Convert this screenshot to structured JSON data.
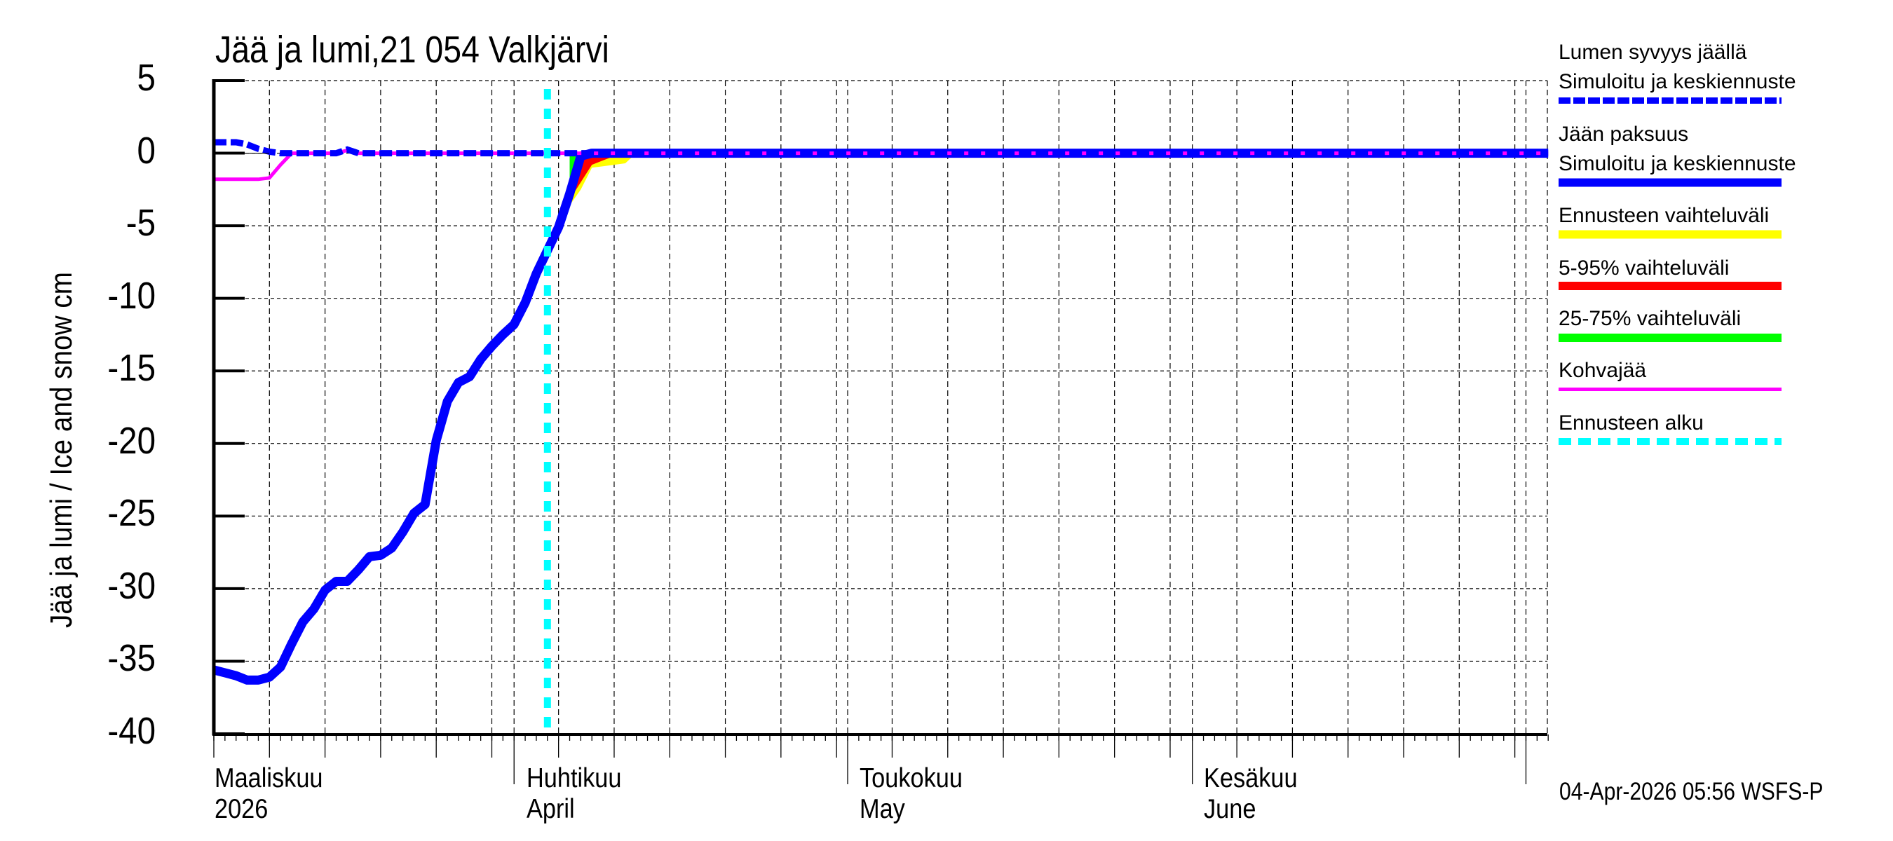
{
  "title": "Jää ja lumi,21 054 Valkjärvi",
  "y_axis_label": "Jää ja lumi / Ice and snow    cm",
  "timestamp": "04-Apr-2026 05:56 WSFS-P",
  "y_ticks": [
    "5",
    "0",
    "-5",
    "-10",
    "-15",
    "-20",
    "-25",
    "-30",
    "-35",
    "-40"
  ],
  "x_labels": [
    {
      "line1": "Maaliskuu",
      "line2": "2026"
    },
    {
      "line1": "Huhtikuu",
      "line2": "April"
    },
    {
      "line1": "Toukokuu",
      "line2": "May"
    },
    {
      "line1": "Kesäkuu",
      "line2": "June"
    }
  ],
  "legend": [
    {
      "line1": "Lumen syvyys jäällä",
      "line2": "Simuloitu ja keskiennuste",
      "color": "#0000ff",
      "style": "dashed-thick"
    },
    {
      "line1": "Jään paksuus",
      "line2": "Simuloitu ja keskiennuste",
      "color": "#0000ff",
      "style": "solid-thick"
    },
    {
      "line1": "Ennusteen vaihteluväli",
      "color": "#ffff00",
      "style": "solid-thick"
    },
    {
      "line1": "5-95% vaihteluväli",
      "color": "#ff0000",
      "style": "solid-thick"
    },
    {
      "line1": "25-75% vaihteluväli",
      "color": "#00ff00",
      "style": "solid-thick"
    },
    {
      "line1": "Kohvajää",
      "color": "#ff00ff",
      "style": "solid-thin"
    },
    {
      "line1": "Ennusteen alku",
      "color": "#00ffff",
      "style": "dashed"
    }
  ],
  "chart_data": {
    "type": "line",
    "title": "Jää ja lumi,21 054 Valkjärvi",
    "xlabel": "",
    "ylabel": "Jää ja lumi / Ice and snow cm",
    "ylim": [
      -40,
      5
    ],
    "xlim": [
      "2026-03-05",
      "2026-07-03"
    ],
    "y_tick_step": 5,
    "grid": true,
    "legend_position": "right",
    "forecast_start": "2026-04-04",
    "x_tick_labels": [
      "Maaliskuu 2026",
      "Huhtikuu April",
      "Toukokuu May",
      "Kesäkuu June"
    ],
    "x": [
      "03-05",
      "03-06",
      "03-07",
      "03-08",
      "03-09",
      "03-10",
      "03-11",
      "03-12",
      "03-13",
      "03-14",
      "03-15",
      "03-16",
      "03-17",
      "03-18",
      "03-19",
      "03-20",
      "03-21",
      "03-22",
      "03-23",
      "03-24",
      "03-25",
      "03-26",
      "03-27",
      "03-28",
      "03-29",
      "03-30",
      "03-31",
      "04-01",
      "04-02",
      "04-03",
      "04-04",
      "04-05",
      "04-06",
      "04-07",
      "04-08",
      "07-03"
    ],
    "series": [
      {
        "name": "Jään paksuus (Simuloitu ja keskiennuste)",
        "color": "#0000ff",
        "values": [
          -35.6,
          -35.8,
          -36.0,
          -36.3,
          -36.3,
          -36.1,
          -35.4,
          -33.8,
          -32.3,
          -31.4,
          -30.1,
          -29.5,
          -29.5,
          -28.7,
          -27.8,
          -27.7,
          -27.2,
          -26.1,
          -24.8,
          -24.2,
          -19.8,
          -17.1,
          -15.8,
          -15.4,
          -14.2,
          -13.3,
          -12.5,
          -11.8,
          -10.3,
          -8.3,
          -6.7,
          -5.1,
          -2.8,
          -0.2,
          0,
          0
        ]
      },
      {
        "name": "Lumen syvyys jäällä (Simuloitu ja keskiennuste)",
        "color": "#0000ff",
        "values": [
          0.75,
          0.75,
          0.75,
          0.6,
          0.3,
          0.1,
          0,
          0,
          0,
          0,
          0,
          0,
          0.25,
          0,
          0,
          0,
          0,
          0,
          0,
          0,
          0,
          0,
          0,
          0,
          0,
          0,
          0,
          0,
          0,
          0,
          0,
          0,
          0,
          0,
          0,
          0
        ]
      },
      {
        "name": "Kohvajää",
        "color": "#ff00ff",
        "values": [
          -1.8,
          -1.8,
          -1.8,
          -1.8,
          -1.8,
          -1.7,
          -0.8,
          0,
          0,
          0,
          0,
          0,
          0.2,
          0,
          0,
          0,
          0,
          0,
          0,
          0,
          0,
          0,
          0,
          0,
          0,
          0,
          0,
          0,
          0,
          0,
          0,
          0,
          0,
          0,
          0,
          0
        ]
      }
    ],
    "forecast_bands": {
      "x": [
        "04-06",
        "04-07",
        "04-08",
        "04-09",
        "04-10",
        "04-11",
        "04-12"
      ],
      "ennusteen_vaihteluvali_low": [
        -3.6,
        -2.5,
        -1.0,
        -0.9,
        -0.8,
        -0.7,
        0
      ],
      "p5_95_low": [
        -3.2,
        -2.0,
        -0.8,
        -0.5,
        -0.2,
        0,
        0
      ],
      "p25_75_low": [
        -2.9,
        -0.3,
        0,
        0,
        0,
        0,
        0
      ]
    }
  },
  "colors": {
    "ice": "#0000ff",
    "snow": "#0000ff",
    "range": "#ffff00",
    "p5_95": "#ff0000",
    "p25_75": "#00ff00",
    "slush": "#ff00ff",
    "forecast_start": "#00ffff"
  }
}
